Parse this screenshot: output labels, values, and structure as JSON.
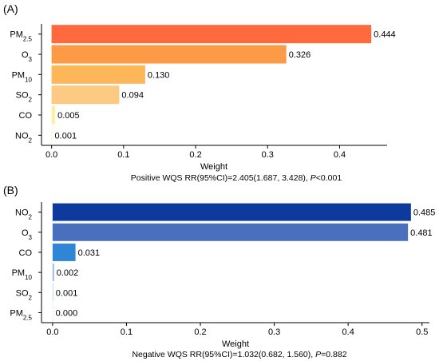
{
  "chart_data": [
    {
      "type": "bar",
      "orientation": "horizontal",
      "panel_label": "(A)",
      "categories": [
        "PM2.5",
        "O3",
        "PM10",
        "SO2",
        "CO",
        "NO2"
      ],
      "category_parts": [
        {
          "base": "PM",
          "sub": "2.5"
        },
        {
          "base": "O",
          "sub": "3"
        },
        {
          "base": "PM",
          "sub": "10"
        },
        {
          "base": "SO",
          "sub": "2"
        },
        {
          "base": "CO",
          "sub": ""
        },
        {
          "base": "NO",
          "sub": "2"
        }
      ],
      "values": [
        0.444,
        0.326,
        0.13,
        0.094,
        0.005,
        0.001
      ],
      "value_labels": [
        "0.444",
        "0.326",
        "0.130",
        "0.094",
        "0.005",
        "0.001"
      ],
      "colors": [
        "#fe6a3d",
        "#fd9a46",
        "#fdb658",
        "#fdca84",
        "#fbf1a6",
        "#fdf6d8"
      ],
      "xlabel": "Weight",
      "xticks": [
        0.0,
        0.1,
        0.2,
        0.3,
        0.4
      ],
      "xtick_labels": [
        "0.0",
        "0.1",
        "0.2",
        "0.3",
        "0.4"
      ],
      "xlim": [
        -0.014,
        0.466
      ],
      "caption_parts": {
        "pre": "Positive WQS RR(95%CI)=2.405(1.687, 3.428), ",
        "italic": "P",
        "post": "<0.001"
      },
      "grid": false
    },
    {
      "type": "bar",
      "orientation": "horizontal",
      "panel_label": "(B)",
      "categories": [
        "NO2",
        "O3",
        "CO",
        "PM10",
        "SO2",
        "PM2.5"
      ],
      "category_parts": [
        {
          "base": "NO",
          "sub": "2"
        },
        {
          "base": "O",
          "sub": "3"
        },
        {
          "base": "CO",
          "sub": ""
        },
        {
          "base": "PM",
          "sub": "10"
        },
        {
          "base": "SO",
          "sub": "2"
        },
        {
          "base": "PM",
          "sub": "2.5"
        }
      ],
      "values": [
        0.485,
        0.481,
        0.031,
        0.002,
        0.001,
        0.0
      ],
      "value_labels": [
        "0.485",
        "0.481",
        "0.031",
        "0.002",
        "0.001",
        "0.000"
      ],
      "colors": [
        "#0d3a9c",
        "#4a6fbd",
        "#2e86d4",
        "#9fb5dc",
        "#c5d3ea",
        "#e8eef8"
      ],
      "xlabel": "Weight",
      "xticks": [
        0.0,
        0.1,
        0.2,
        0.3,
        0.4,
        0.5
      ],
      "xtick_labels": [
        "0.0",
        "0.1",
        "0.2",
        "0.3",
        "0.4",
        "0.5"
      ],
      "xlim": [
        -0.015,
        0.51
      ],
      "caption_parts": {
        "pre": "Negative WQS RR(95%CI)=1.032(0.682, 1.560), ",
        "italic": "P",
        "post": "=0.882"
      },
      "grid": false
    }
  ]
}
